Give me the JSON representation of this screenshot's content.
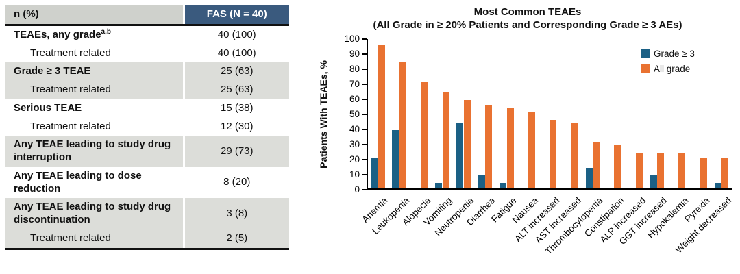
{
  "colors": {
    "table_header_blue": "#3a5a7e",
    "table_header_gray": "#cfd1cc",
    "table_row_gray": "#dcddd9",
    "bar_blue": "#1b6085",
    "bar_orange": "#e97231"
  },
  "table": {
    "header": {
      "col1": "n (%)",
      "col2": "FAS (N = 40)"
    },
    "rows": [
      {
        "label": "TEAEs, any grade",
        "sup": "a,b",
        "value": "40 (100)",
        "bold": true,
        "indent": false,
        "shaded": false
      },
      {
        "label": "Treatment related",
        "value": "40 (100)",
        "bold": false,
        "indent": true,
        "shaded": false
      },
      {
        "label": "Grade ≥ 3 TEAE",
        "value": "25 (63)",
        "bold": true,
        "indent": false,
        "shaded": true
      },
      {
        "label": "Treatment related",
        "value": "25 (63)",
        "bold": false,
        "indent": true,
        "shaded": true
      },
      {
        "label": "Serious TEAE",
        "value": "15 (38)",
        "bold": true,
        "indent": false,
        "shaded": false
      },
      {
        "label": "Treatment related",
        "value": "12 (30)",
        "bold": false,
        "indent": true,
        "shaded": false
      },
      {
        "label": "Any TEAE leading to study drug interruption",
        "value": "29 (73)",
        "bold": true,
        "indent": false,
        "shaded": true
      },
      {
        "label": "Any TEAE leading to dose reduction",
        "value": "8 (20)",
        "bold": true,
        "indent": false,
        "shaded": false
      },
      {
        "label": "Any TEAE leading to study drug discontinuation",
        "value": "3 (8)",
        "bold": true,
        "indent": false,
        "shaded": true
      },
      {
        "label": "Treatment related",
        "value": "2 (5)",
        "bold": false,
        "indent": true,
        "shaded": true
      }
    ]
  },
  "chart": {
    "title": "Most Common TEAEs",
    "subtitle": "(All Grade in ≥ 20% Patients and Corresponding Grade ≥ 3 AEs)",
    "ylabel": "Patients With TEAEs, %"
  },
  "chart_data": {
    "type": "bar",
    "title": "Most Common TEAEs",
    "subtitle": "(All Grade in ≥ 20% Patients and Corresponding Grade ≥ 3 AEs)",
    "xlabel": "",
    "ylabel": "Patients With TEAEs, %",
    "ylim": [
      0,
      100
    ],
    "ytick_step": 10,
    "grid": false,
    "legend_position": "upper right",
    "categories": [
      "Anemia",
      "Leukopenia",
      "Alopecia",
      "Vomiting",
      "Neutropenia",
      "Diarrhea",
      "Fatigue",
      "Nausea",
      "ALT increased",
      "AST increased",
      "Thrombocytopenia",
      "Constipation",
      "ALP increased",
      "GGT increased",
      "Hypokalemia",
      "Pyrexia",
      "Weight decreased"
    ],
    "series": [
      {
        "name": "Grade ≥ 3",
        "color": "#1b6085",
        "values": [
          20,
          38,
          0,
          3,
          43,
          8,
          3,
          0,
          0,
          0,
          13,
          0,
          0,
          8,
          0,
          0,
          3
        ]
      },
      {
        "name": "All grade",
        "color": "#e97231",
        "values": [
          95,
          83,
          70,
          63,
          58,
          55,
          53,
          50,
          45,
          43,
          30,
          28,
          23,
          23,
          23,
          20,
          20
        ]
      }
    ]
  }
}
